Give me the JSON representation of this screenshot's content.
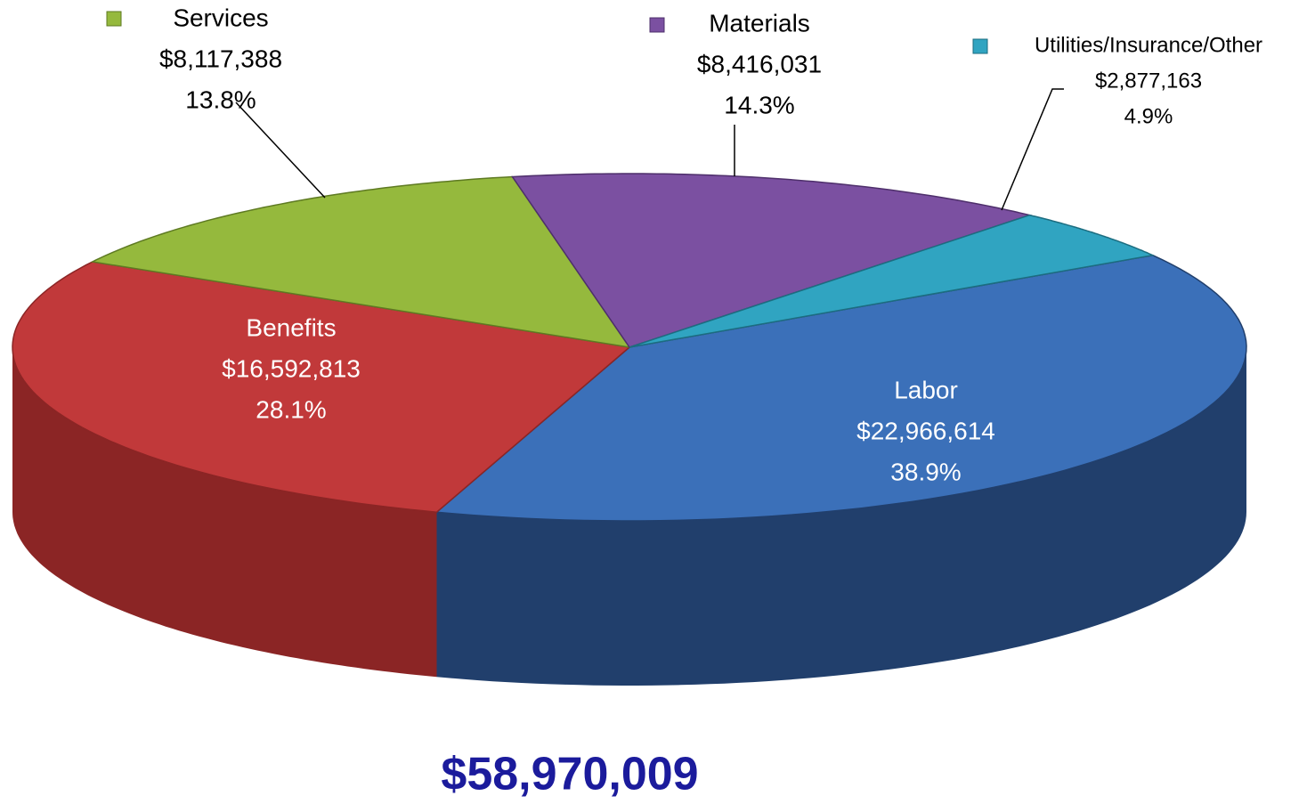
{
  "chart_data": {
    "type": "pie",
    "categories": [
      "Labor",
      "Benefits",
      "Services",
      "Materials",
      "Utilities/Insurance/Other"
    ],
    "values": [
      22966614,
      16592813,
      8117388,
      8416031,
      2877163
    ],
    "value_labels": [
      "$22,966,614",
      "$16,592,813",
      "$8,117,388",
      "$8,416,031",
      "$2,877,163"
    ],
    "percentages": [
      38.9,
      28.1,
      13.8,
      14.3,
      4.9
    ],
    "percent_labels": [
      "38.9%",
      "28.1%",
      "13.8%",
      "14.3%",
      "4.9%"
    ],
    "colors": [
      "#3b70b9",
      "#c1393a",
      "#95b93d",
      "#7b50a1",
      "#30a4c1"
    ],
    "side_colors": [
      "#213f6c",
      "#8b2525",
      "#5e7a22",
      "#4e2f6b",
      "#1c6d80"
    ],
    "total_label": "$58,970,009"
  }
}
